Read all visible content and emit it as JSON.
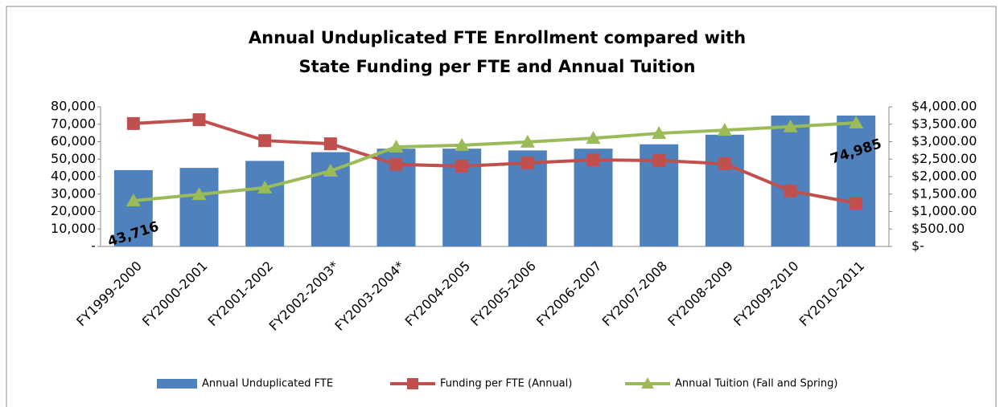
{
  "chart_data": {
    "type": "bar-line",
    "title": [
      "Annual Unduplicated FTE Enrollment compared with",
      "State Funding per FTE and Annual Tuition"
    ],
    "categories": [
      "FY1999-2000",
      "FY2000-2001",
      "FY2001-2002",
      "FY2002-2003*",
      "FY2003-2004*",
      "FY2004-2005",
      "FY2005-2006",
      "FY2006-2007",
      "FY2007-2008",
      "FY2008-2009",
      "FY2009-2010",
      "FY2010-2011"
    ],
    "series": [
      {
        "name": "Annual Unduplicated FTE",
        "type": "bar",
        "color": "#4f81bd",
        "axis": "y",
        "values": [
          43716,
          45000,
          49000,
          54000,
          56000,
          56000,
          55000,
          56000,
          58500,
          64000,
          75000,
          74985
        ],
        "value_labels": [
          "43,716",
          null,
          null,
          null,
          null,
          null,
          null,
          null,
          null,
          null,
          null,
          "74,985"
        ]
      },
      {
        "name": "Funding per FTE (Annual)",
        "type": "line",
        "marker": "square",
        "color": "#c0504d",
        "axis": "y2",
        "values": [
          3520,
          3630,
          3030,
          2940,
          2350,
          2300,
          2390,
          2480,
          2460,
          2370,
          1590,
          1240
        ]
      },
      {
        "name": "Annual Tuition (Fall and Spring)",
        "type": "line",
        "marker": "triangle",
        "color": "#9bbb59",
        "axis": "y2",
        "values": [
          1310,
          1490,
          1680,
          2160,
          2850,
          2900,
          2990,
          3100,
          3240,
          3330,
          3430,
          3540
        ]
      }
    ],
    "ylim": [
      0,
      80000
    ],
    "yticks": [
      {
        "value": 0,
        "label": "-"
      },
      {
        "value": 10000,
        "label": "10,000"
      },
      {
        "value": 20000,
        "label": "20,000"
      },
      {
        "value": 30000,
        "label": "30,000"
      },
      {
        "value": 40000,
        "label": "40,000"
      },
      {
        "value": 50000,
        "label": "50,000"
      },
      {
        "value": 60000,
        "label": "60,000"
      },
      {
        "value": 70000,
        "label": "70,000"
      },
      {
        "value": 80000,
        "label": "80,000"
      }
    ],
    "y2lim": [
      0,
      4000
    ],
    "y2ticks": [
      {
        "value": 0,
        "label": "$-"
      },
      {
        "value": 500,
        "label": "$500.00"
      },
      {
        "value": 1000,
        "label": "$1,000.00"
      },
      {
        "value": 1500,
        "label": "$1,500.00"
      },
      {
        "value": 2000,
        "label": "$2,000.00"
      },
      {
        "value": 2500,
        "label": "$2,500.00"
      },
      {
        "value": 3000,
        "label": "$3,000.00"
      },
      {
        "value": 3500,
        "label": "$3,500.00"
      },
      {
        "value": 4000,
        "label": "$4,000.00"
      }
    ],
    "legend": "bottom"
  }
}
